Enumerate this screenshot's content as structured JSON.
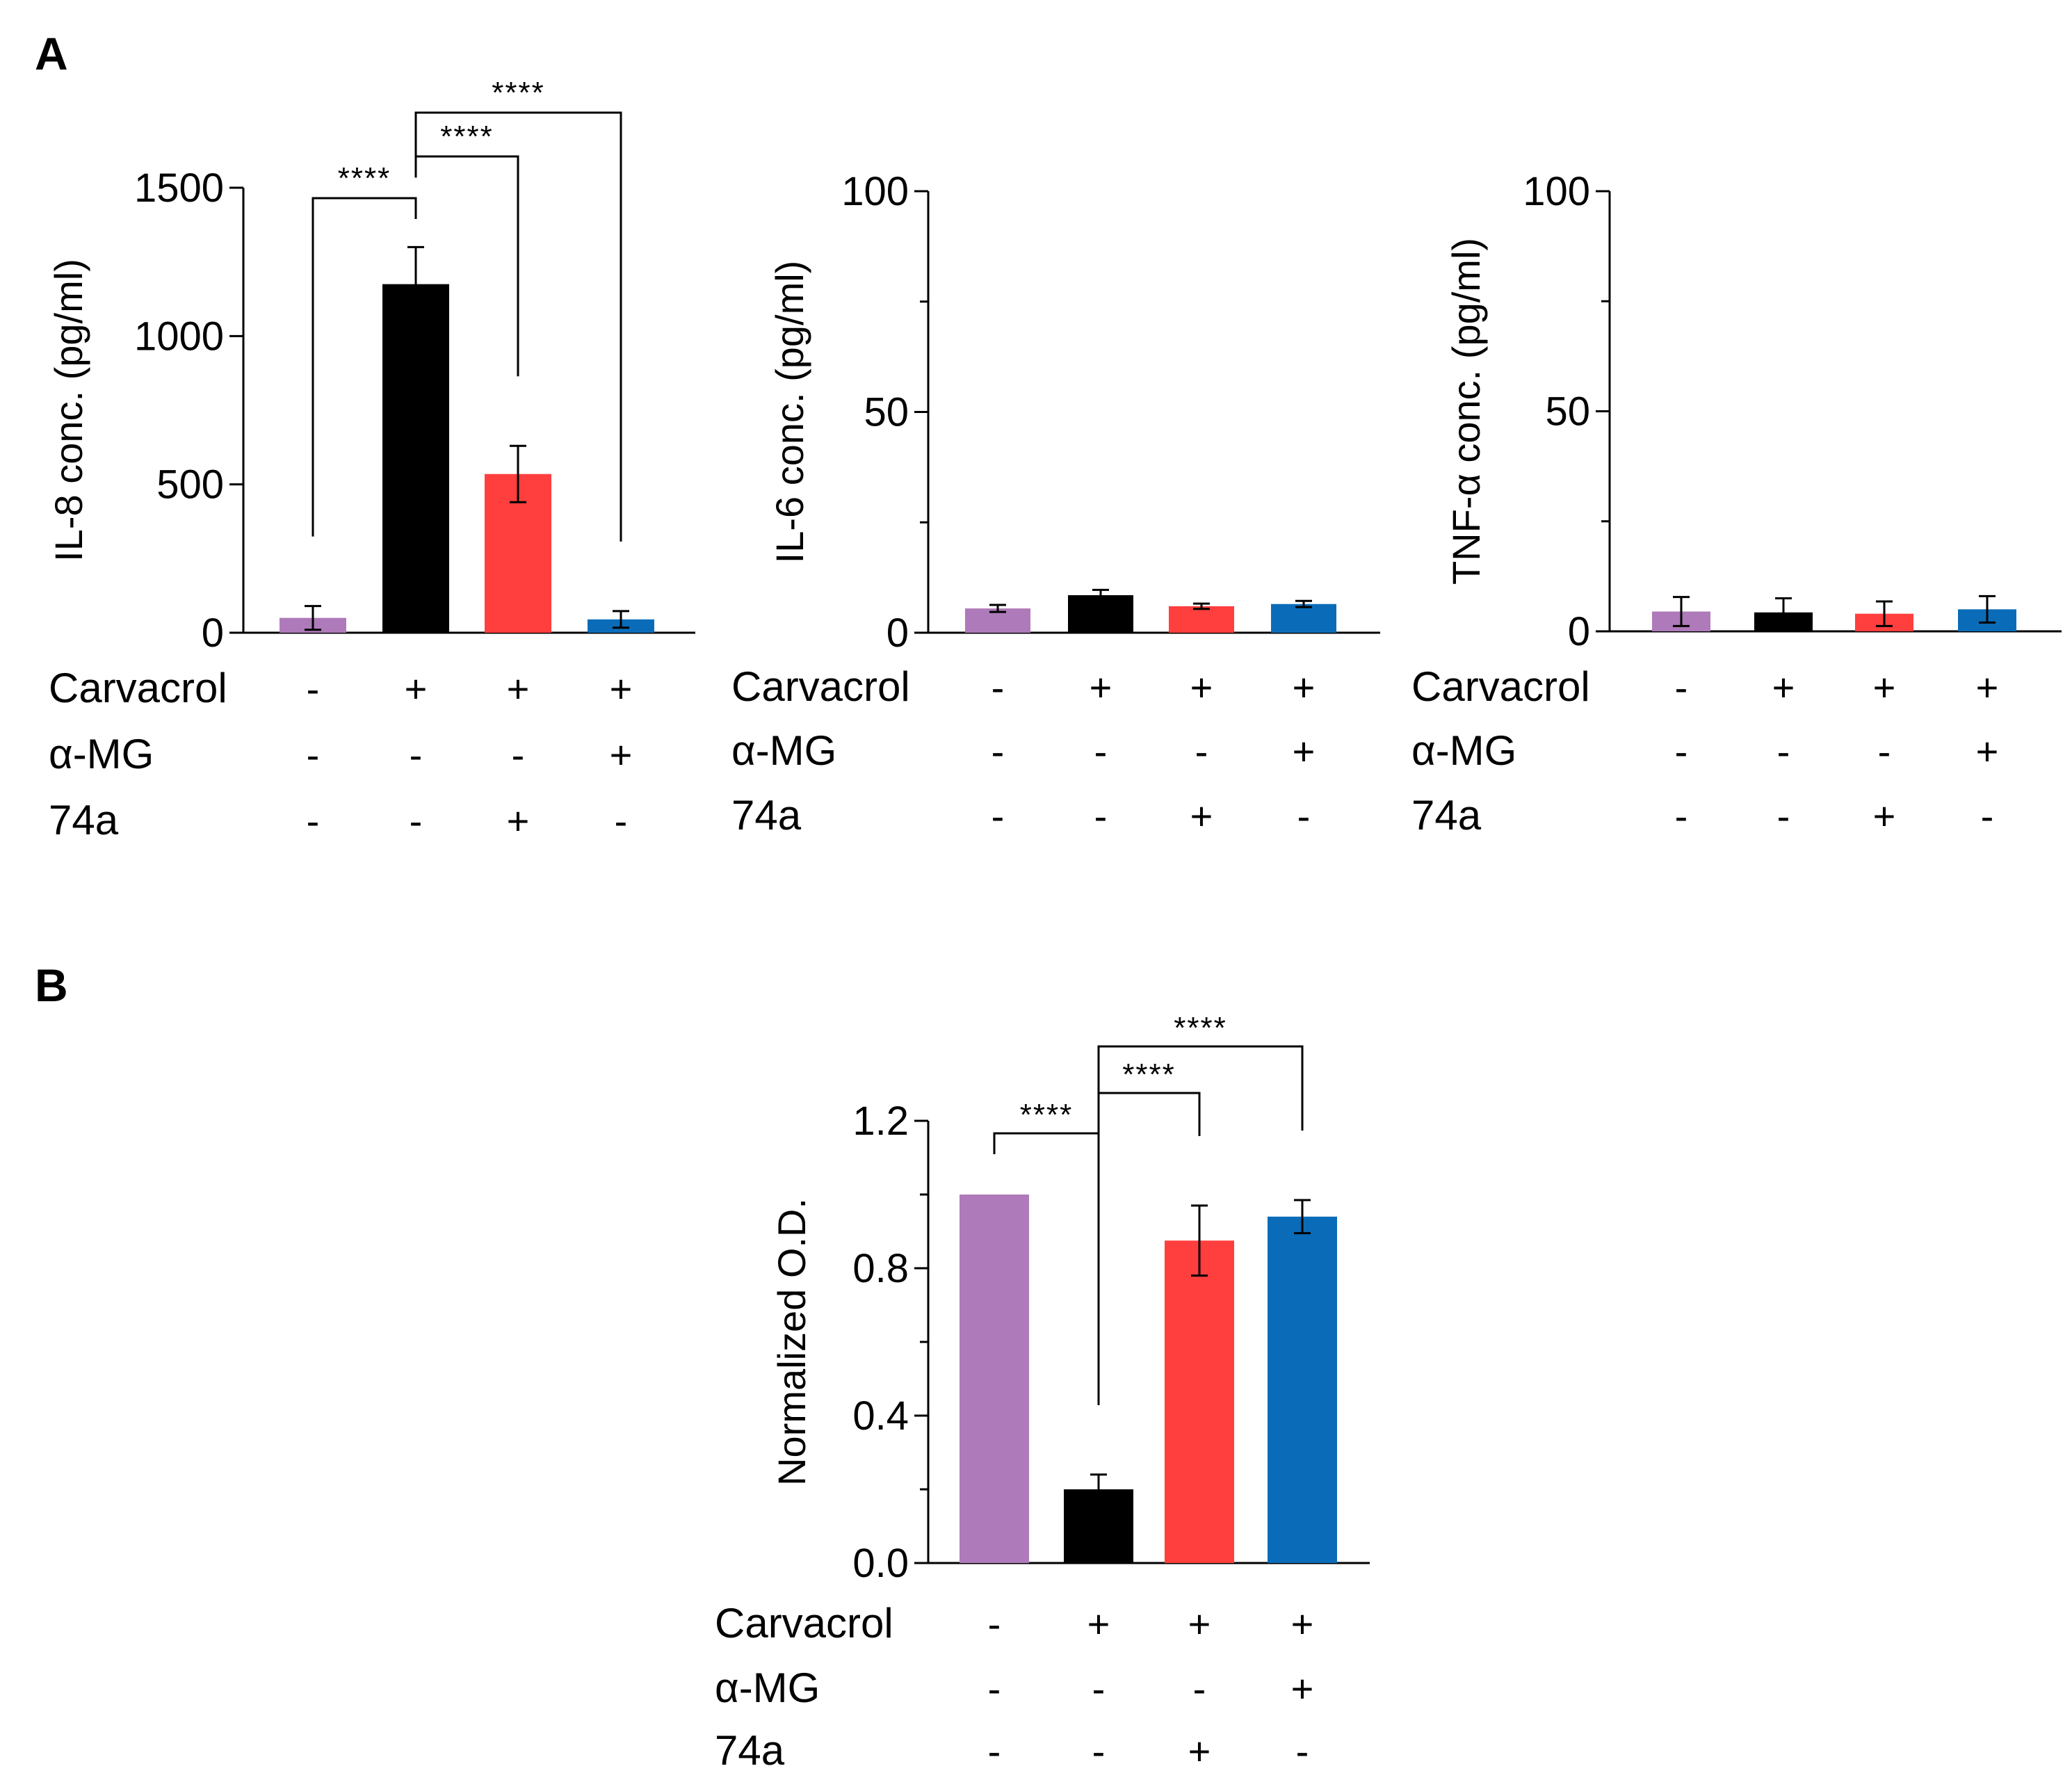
{
  "colors": {
    "vehicle": "#ae7ab9",
    "carvacrol": "#000000",
    "carvacrol_74a": "#ff3e3e",
    "carvacrol_amg": "#0a6cb8"
  },
  "panels": {
    "A": {
      "letter": "A"
    },
    "B": {
      "letter": "B"
    }
  },
  "conditions": {
    "row_labels": [
      "Carvacrol",
      "α-MG",
      "74a"
    ],
    "signs": [
      [
        "-",
        "+",
        "+",
        "+"
      ],
      [
        "-",
        "-",
        "-",
        "+"
      ],
      [
        "-",
        "-",
        "+",
        "-"
      ]
    ]
  },
  "chart_data": [
    {
      "panel": "A",
      "type": "bar",
      "ylabel": "IL-8 conc. (pg/ml)",
      "ylim": [
        0,
        1500
      ],
      "yticks": [
        0,
        500,
        1000,
        1500
      ],
      "minor_ticks": [],
      "values": [
        50,
        1175,
        535,
        45
      ],
      "errors": [
        40,
        125,
        95,
        28
      ],
      "significance": [
        {
          "from": 0,
          "to": 1,
          "label": "****"
        },
        {
          "from": 1,
          "to": 2,
          "label": "****"
        },
        {
          "from": 1,
          "to": 3,
          "label": "****"
        }
      ]
    },
    {
      "panel": "A",
      "type": "bar",
      "ylabel": "IL-6 conc. (pg/ml)",
      "ylim": [
        0,
        100
      ],
      "yticks": [
        0,
        50,
        100
      ],
      "minor_ticks": [
        25,
        75
      ],
      "values": [
        5.5,
        8.5,
        6,
        6.5
      ],
      "errors": [
        0.8,
        1.2,
        0.6,
        0.7
      ],
      "significance": []
    },
    {
      "panel": "A",
      "type": "bar",
      "ylabel": "TNF-α conc. (pg/ml)",
      "ylim": [
        0,
        100
      ],
      "yticks": [
        0,
        50,
        100
      ],
      "minor_ticks": [
        25,
        75
      ],
      "values": [
        4.5,
        4.3,
        4.0,
        5.0
      ],
      "errors": [
        3.3,
        3.2,
        2.8,
        3.0
      ],
      "significance": []
    },
    {
      "panel": "B",
      "type": "bar",
      "ylabel": "Normalized O.D.",
      "ylim": [
        0,
        1.2
      ],
      "yticks": [
        "0.0",
        "0.4",
        "0.8",
        "1.2"
      ],
      "minor_ticks": [
        0.2,
        0.6,
        1.0
      ],
      "values": [
        1.0,
        0.2,
        0.875,
        0.94
      ],
      "errors": [
        0,
        0.04,
        0.095,
        0.045
      ],
      "significance": [
        {
          "from": 0,
          "to": 1,
          "label": "****"
        },
        {
          "from": 1,
          "to": 2,
          "label": "****"
        },
        {
          "from": 1,
          "to": 3,
          "label": "****"
        }
      ]
    }
  ]
}
